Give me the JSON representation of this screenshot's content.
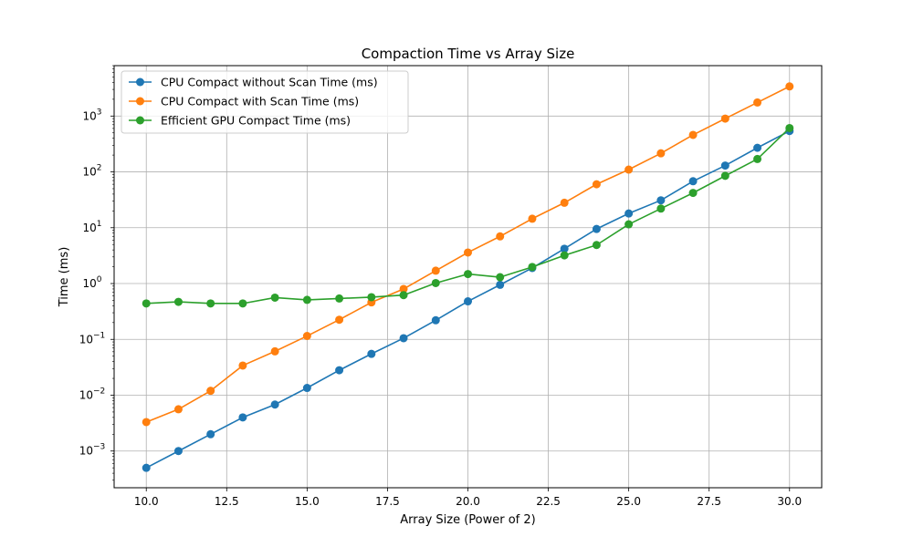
{
  "chart_data": {
    "type": "line",
    "title": "Compaction Time vs Array Size",
    "xlabel": "Array Size (Power of 2)",
    "ylabel": "Time (ms)",
    "xlim": [
      9.0,
      31.0
    ],
    "ylim": [
      0.00022,
      8000
    ],
    "yscale": "log",
    "grid": true,
    "legend_position": "upper-left",
    "x_ticks": [
      "10.0",
      "12.5",
      "15.0",
      "17.5",
      "20.0",
      "22.5",
      "25.0",
      "27.5",
      "30.0"
    ],
    "x_tick_values": [
      10.0,
      12.5,
      15.0,
      17.5,
      20.0,
      22.5,
      25.0,
      27.5,
      30.0
    ],
    "y_tick_exponents": [
      -3,
      -2,
      -1,
      0,
      1,
      2,
      3
    ],
    "x": [
      10,
      11,
      12,
      13,
      14,
      15,
      16,
      17,
      18,
      19,
      20,
      21,
      22,
      23,
      24,
      25,
      26,
      27,
      28,
      29,
      30
    ],
    "series": [
      {
        "name": "CPU Compact without Scan Time (ms)",
        "color": "#1f77b4",
        "values": [
          0.0005,
          0.001,
          0.002,
          0.004,
          0.0068,
          0.0135,
          0.028,
          0.055,
          0.105,
          0.22,
          0.48,
          0.95,
          1.9,
          4.2,
          9.5,
          18,
          31,
          68,
          130,
          270,
          540
        ]
      },
      {
        "name": "CPU Compact with Scan Time (ms)",
        "color": "#ff7f0e",
        "values": [
          0.0033,
          0.0056,
          0.012,
          0.034,
          0.061,
          0.115,
          0.225,
          0.46,
          0.8,
          1.7,
          3.6,
          7.0,
          14.5,
          28,
          60,
          110,
          215,
          460,
          900,
          1750,
          3400
        ]
      },
      {
        "name": "Efficient GPU Compact Time (ms)",
        "color": "#2ca02c",
        "values": [
          0.44,
          0.47,
          0.44,
          0.44,
          0.56,
          0.51,
          0.54,
          0.57,
          0.62,
          1.02,
          1.48,
          1.3,
          1.98,
          3.2,
          4.9,
          11.5,
          22,
          42,
          85,
          170,
          610
        ]
      }
    ]
  }
}
